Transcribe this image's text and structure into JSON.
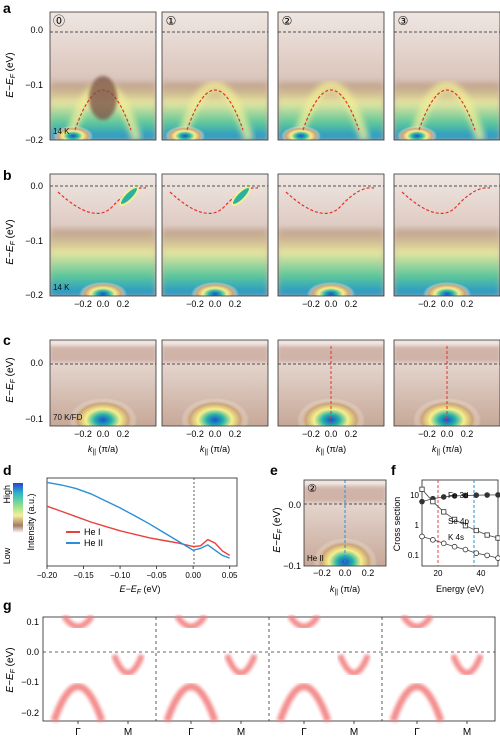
{
  "panel_letters": [
    "a",
    "b",
    "c",
    "d",
    "e",
    "f",
    "g"
  ],
  "doping_labels": [
    "⓪",
    "①",
    "②",
    "③"
  ],
  "row_a": {
    "ylabel": "E−E",
    "ylabel_sub": "F",
    "ylabel_unit": " (eV)",
    "yticks": [
      "0.0",
      "−0.1",
      "−0.2"
    ],
    "temp_label": "14 K"
  },
  "row_b": {
    "ylabel": "E−E",
    "ylabel_sub": "F",
    "ylabel_unit": " (eV)",
    "yticks": [
      "0.0",
      "−0.1",
      "−0.2"
    ],
    "temp_label": "14 K",
    "xticks": [
      "−0.2",
      "0.0",
      "0.2"
    ]
  },
  "row_c": {
    "ylabel": "E−E",
    "ylabel_sub": "F",
    "ylabel_unit": " (eV)",
    "yticks": [
      "0.0",
      "−0.1"
    ],
    "temp_label": "70 K/FD",
    "xticks": [
      "−0.2",
      "0.0",
      "0.2"
    ],
    "xlabel_k": "k",
    "xlabel_sub": "||",
    "xlabel_unit": " (π/a)"
  },
  "panel_d": {
    "colorbar_high": "High",
    "colorbar_low": "Low",
    "ylabel": "Intensity (a.u.)",
    "xlabel": "E−E",
    "xlabel_sub": "F",
    "xlabel_unit": " (eV)",
    "xticks": [
      "−0.20",
      "−0.15",
      "−0.10",
      "−0.05",
      "0.00",
      "0.05"
    ],
    "legend": [
      "He I",
      "He II"
    ],
    "colors": {
      "he1": "#e8413c",
      "he2": "#2a8fd6"
    }
  },
  "panel_e": {
    "doping": "②",
    "label": "He II",
    "yticks": [
      "0.0",
      "−0.1"
    ],
    "xticks": [
      "−0.2",
      "0.0",
      "0.2"
    ]
  },
  "panel_f": {
    "ylabel": "Cross section",
    "xlabel": "Energy (eV)",
    "yticks": [
      "10",
      "1",
      "0.1"
    ],
    "xticks": [
      "20",
      "40"
    ],
    "series": [
      "Fe 3d",
      "Se 4p",
      "K 4s"
    ]
  },
  "panel_g": {
    "ylabel": "E−E",
    "ylabel_sub": "F",
    "ylabel_unit": " (eV)",
    "yticks": [
      "0.1",
      "0.0",
      "−0.1",
      "−0.2"
    ],
    "xticks": [
      "Γ",
      "M",
      "Γ",
      "M",
      "Γ",
      "M",
      "Γ",
      "M"
    ]
  },
  "chart_data": [
    {
      "type": "line",
      "panel": "d",
      "x": [
        -0.2,
        -0.18,
        -0.16,
        -0.14,
        -0.12,
        -0.1,
        -0.08,
        -0.06,
        -0.04,
        -0.02,
        0.0,
        0.01,
        0.02,
        0.03,
        0.04,
        0.05
      ],
      "series": [
        {
          "name": "He I",
          "values": [
            0.68,
            0.62,
            0.56,
            0.5,
            0.45,
            0.4,
            0.36,
            0.32,
            0.29,
            0.26,
            0.22,
            0.23,
            0.3,
            0.26,
            0.17,
            0.12
          ]
        },
        {
          "name": "He II",
          "values": [
            0.95,
            0.92,
            0.88,
            0.82,
            0.74,
            0.66,
            0.57,
            0.48,
            0.38,
            0.28,
            0.18,
            0.2,
            0.24,
            0.18,
            0.12,
            0.09
          ]
        }
      ],
      "xlim": [
        -0.2,
        0.06
      ]
    },
    {
      "type": "scatter",
      "panel": "f",
      "x": [
        15,
        20,
        25,
        30,
        35,
        40,
        45,
        50
      ],
      "series": [
        {
          "name": "Fe 3d",
          "values": [
            6,
            7.5,
            8.5,
            9.2,
            9.5,
            9.7,
            9.8,
            9.9
          ]
        },
        {
          "name": "Se 4p",
          "values": [
            15,
            6,
            2.8,
            1.6,
            1.0,
            0.7,
            0.5,
            0.4
          ]
        },
        {
          "name": "K 4s",
          "values": [
            0.45,
            0.35,
            0.27,
            0.21,
            0.17,
            0.13,
            0.11,
            0.09
          ]
        }
      ],
      "xlim": [
        15,
        50
      ],
      "ylim": [
        0.05,
        30
      ]
    }
  ]
}
